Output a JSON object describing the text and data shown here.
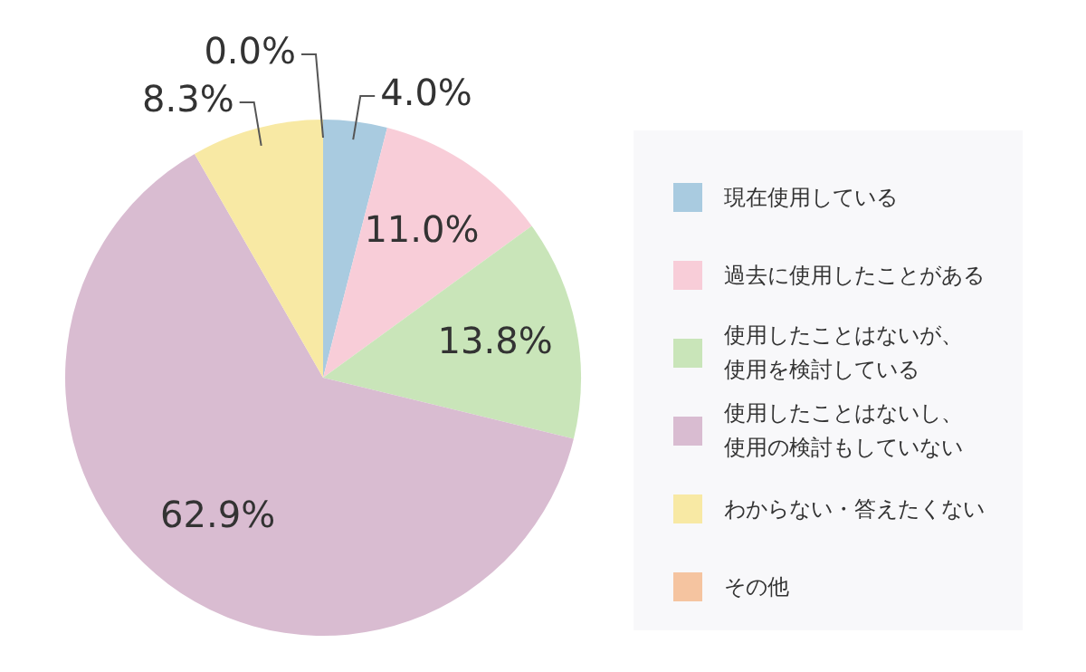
{
  "chart_data": {
    "type": "pie",
    "categories": [
      "現在使用している",
      "過去に使用したことがある",
      "使用したことはないが、使用を検討している",
      "使用したことはないし、使用の検討もしていない",
      "わからない・答えたくない",
      "その他"
    ],
    "values": [
      4.0,
      11.0,
      13.8,
      62.9,
      8.3,
      0.0
    ],
    "colors": [
      "#a9cbe0",
      "#f8cdd8",
      "#c9e5b9",
      "#d9bcd1",
      "#f8e9a4",
      "#f5c4a0"
    ],
    "value_labels": [
      "4.0%",
      "11.0%",
      "13.8%",
      "62.9%",
      "8.3%",
      "0.0%"
    ],
    "legend": "right"
  }
}
